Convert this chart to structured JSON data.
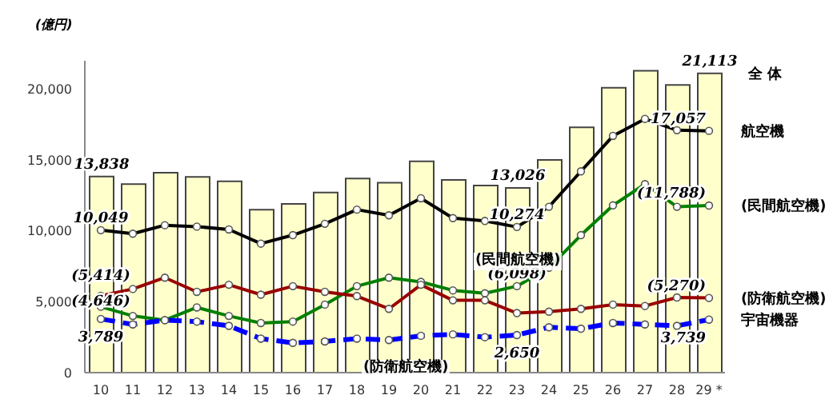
{
  "chart_data": {
    "type": "line",
    "ylabel": "(億円)",
    "categories": [
      "10",
      "11",
      "12",
      "13",
      "14",
      "15",
      "16",
      "17",
      "18",
      "19",
      "20",
      "21",
      "22",
      "23",
      "24",
      "25",
      "26",
      "27",
      "28",
      "29 *"
    ],
    "ylim": [
      0,
      22000
    ],
    "yticks": [
      0,
      {
        "value": 5000,
        "label": "5,000"
      },
      {
        "value": 10000,
        "label": "10,000"
      },
      {
        "value": 15000,
        "label": "15,000"
      },
      {
        "value": 20000,
        "label": "20,000"
      }
    ],
    "marker": "circle",
    "series": [
      {
        "type": "bar",
        "name": "全 体",
        "color": "#ffffcc",
        "values": [
          13838,
          13300,
          14100,
          13800,
          13500,
          11500,
          11900,
          12700,
          13700,
          13400,
          14900,
          13600,
          13200,
          13026,
          15000,
          17300,
          20100,
          21300,
          20300,
          21113
        ],
        "value_labels": [
          "13,838",
          null,
          null,
          null,
          null,
          null,
          null,
          null,
          null,
          null,
          null,
          null,
          null,
          "13,026",
          null,
          null,
          null,
          null,
          null,
          "21,113"
        ]
      },
      {
        "name": "航空機",
        "color": "#000000",
        "values": [
          10049,
          9800,
          10400,
          10300,
          10100,
          9100,
          9700,
          10500,
          11500,
          11100,
          12300,
          10900,
          10700,
          10274,
          11700,
          14200,
          16700,
          17900,
          17100,
          17057
        ],
        "value_labels": [
          "10,049",
          null,
          null,
          null,
          null,
          null,
          null,
          null,
          null,
          null,
          null,
          null,
          null,
          "10,274",
          null,
          null,
          null,
          null,
          null,
          "17,057"
        ]
      },
      {
        "name": "(民間航空機)",
        "color": "#008000",
        "values": [
          4646,
          4000,
          3700,
          4600,
          4000,
          3500,
          3600,
          4800,
          6100,
          6700,
          6400,
          5800,
          5600,
          6098,
          7400,
          9700,
          11800,
          13300,
          11700,
          11788
        ],
        "value_labels": [
          "(4,646)",
          null,
          null,
          null,
          null,
          null,
          null,
          null,
          null,
          null,
          null,
          null,
          null,
          "(6,098)",
          null,
          null,
          null,
          null,
          null,
          "(11,788)"
        ]
      },
      {
        "name": "(防衛航空機)",
        "color": "#990000",
        "values": [
          5414,
          5900,
          6700,
          5700,
          6200,
          5500,
          6100,
          5700,
          5400,
          4500,
          6200,
          5100,
          5100,
          4200,
          4300,
          4500,
          4800,
          4700,
          5300,
          5270
        ],
        "value_labels": [
          "(5,414)",
          null,
          null,
          null,
          null,
          null,
          null,
          null,
          null,
          null,
          null,
          null,
          null,
          null,
          null,
          null,
          null,
          null,
          null,
          "(5,270)"
        ]
      },
      {
        "name": "宇宙機器",
        "color": "#0000ff",
        "line_style": "dashed",
        "values": [
          3789,
          3400,
          3700,
          3600,
          3300,
          2400,
          2100,
          2200,
          2400,
          2300,
          2600,
          2700,
          2500,
          2650,
          3200,
          3100,
          3500,
          3400,
          3300,
          3739
        ],
        "value_labels": [
          "3,789",
          null,
          null,
          null,
          null,
          null,
          null,
          null,
          null,
          null,
          null,
          null,
          null,
          "2,650",
          null,
          null,
          null,
          null,
          null,
          "3,739"
        ]
      }
    ],
    "annotations": [
      "(民間航空機)",
      "(防衛航空機)"
    ]
  }
}
